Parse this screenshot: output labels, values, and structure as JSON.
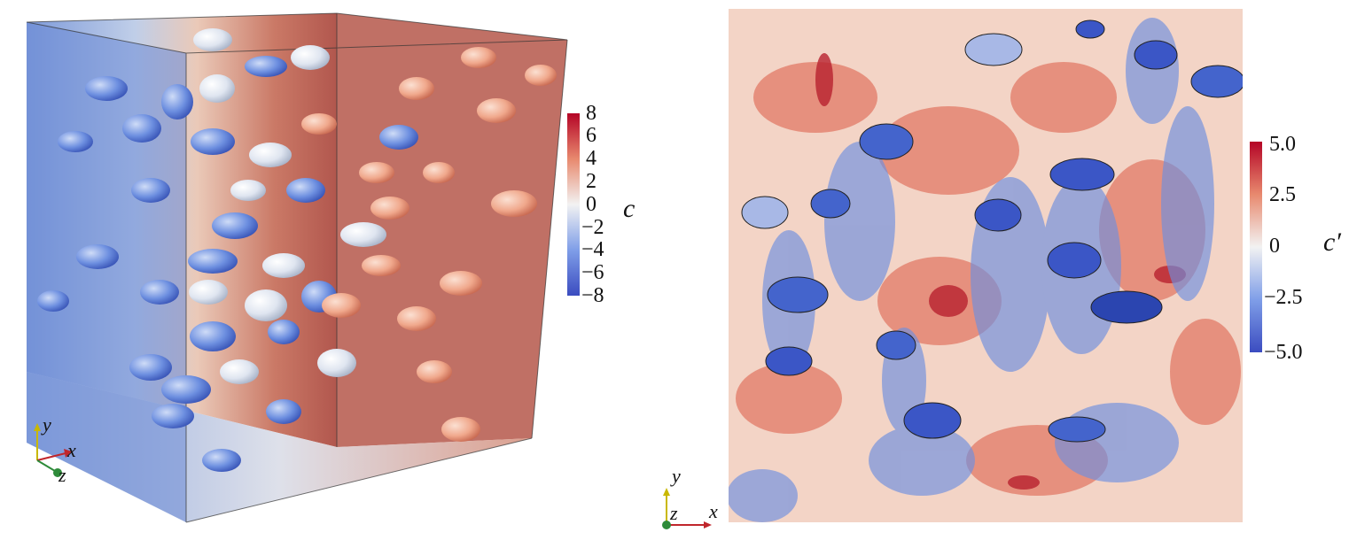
{
  "left_figure": {
    "colorbar": {
      "variable": "c",
      "ticks": [
        "8",
        "6",
        "4",
        "2",
        "0",
        "−2",
        "−4",
        "−6",
        "−8"
      ],
      "range": [
        -8,
        8
      ],
      "colors": {
        "min": "#3b4cc0",
        "mid": "#f2f2f2",
        "max": "#b40426"
      }
    },
    "axes_triad": {
      "y": "y",
      "x": "x",
      "z": "z"
    }
  },
  "right_figure": {
    "colorbar": {
      "variable": "c′",
      "ticks": [
        "5.0",
        "2.5",
        "0",
        "−2.5",
        "−5.0"
      ],
      "range": [
        -5,
        5
      ],
      "colors": {
        "min": "#3b4cc0",
        "mid": "#f2f2f2",
        "max": "#b40426"
      }
    },
    "axes_triad": {
      "y": "y",
      "z": "z",
      "x": "x"
    }
  }
}
